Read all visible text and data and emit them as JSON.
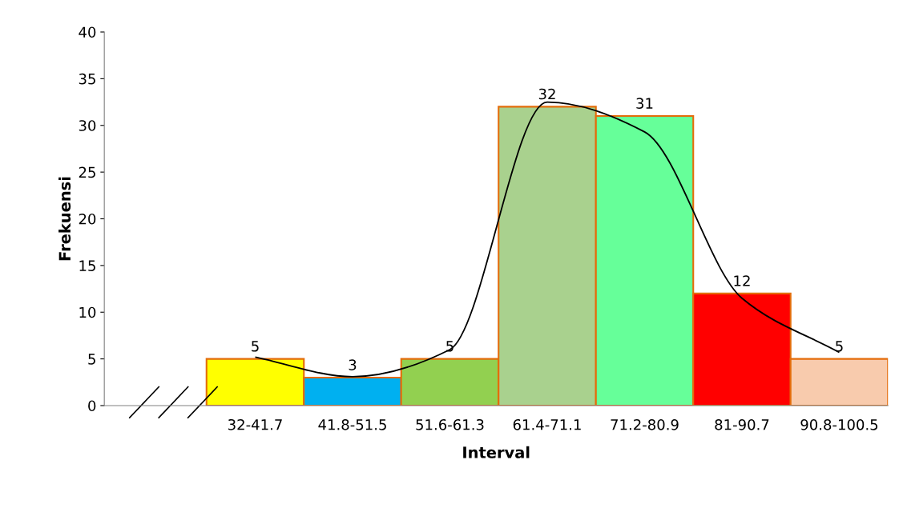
{
  "chart_data": {
    "type": "bar",
    "xlabel": "Interval",
    "ylabel": "Frekuensi",
    "categories": [
      "32-41.7",
      "41.8-51.5",
      "51.6-61.3",
      "61.4-71.1",
      "71.2-80.9",
      "81-90.7",
      "90.8-100.5"
    ],
    "series": [
      {
        "values": [
          5,
          3,
          5,
          32,
          31,
          12,
          5
        ],
        "value_labels": [
          "5",
          "3",
          "5",
          "32",
          "31",
          "12",
          "5"
        ],
        "colors": [
          "#ffff00",
          "#00b0f0",
          "#92d050",
          "#a9d18e",
          "#66ff99",
          "#ff0000",
          "#f8cbad"
        ]
      },
      {
        "type": "line",
        "color": "#000000",
        "values": [
          5.2,
          3.1,
          6,
          32.5,
          29.3,
          11.5,
          5.7
        ]
      }
    ],
    "ylim": [
      0,
      40
    ],
    "yticks": [
      0,
      5,
      10,
      15,
      20,
      25,
      30,
      35,
      40
    ],
    "grid": false,
    "legend": false
  }
}
